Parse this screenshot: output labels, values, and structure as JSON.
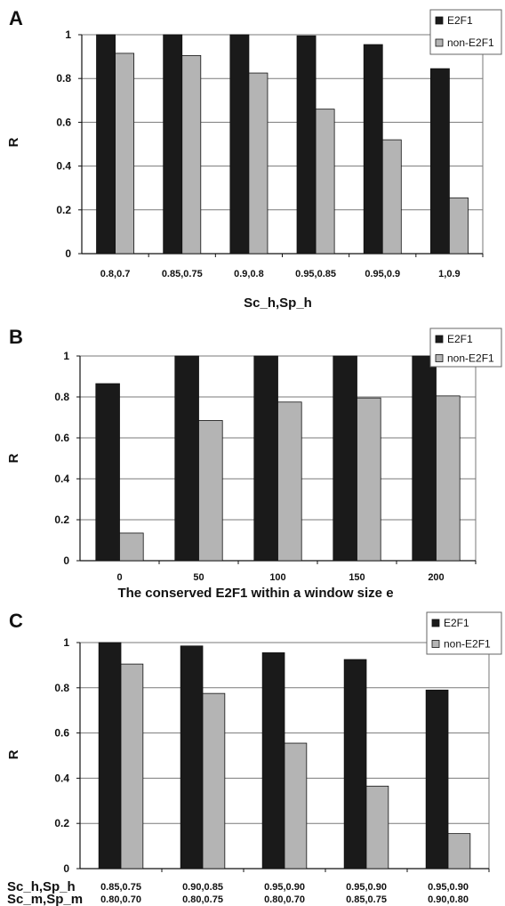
{
  "chart_data": [
    {
      "panel": "A",
      "type": "bar",
      "categories": [
        "0.8,0.7",
        "0.85,0.75",
        "0.9,0.8",
        "0.95,0.85",
        "0.95,0.9",
        "1,0.9"
      ],
      "series": [
        {
          "name": "E2F1",
          "values": [
            1.0,
            1.0,
            1.0,
            0.995,
            0.955,
            0.845
          ]
        },
        {
          "name": "non-E2F1",
          "values": [
            0.915,
            0.905,
            0.825,
            0.66,
            0.52,
            0.255
          ]
        }
      ],
      "ylabel": "R",
      "xlabel": "Sc_h,Sp_h",
      "ylim": [
        0,
        1
      ],
      "yticks": [
        "0",
        "0.2",
        "0.4",
        "0.6",
        "0.8",
        "1"
      ],
      "grid": true,
      "legend": "top-right"
    },
    {
      "panel": "B",
      "type": "bar",
      "categories": [
        "0",
        "50",
        "100",
        "150",
        "200"
      ],
      "series": [
        {
          "name": "E2F1",
          "values": [
            0.865,
            1.0,
            1.0,
            1.0,
            1.0
          ]
        },
        {
          "name": "non-E2F1",
          "values": [
            0.135,
            0.685,
            0.775,
            0.795,
            0.805
          ]
        }
      ],
      "ylabel": "R",
      "xlabel": "The conserved E2F1 within a window size e",
      "ylim": [
        0,
        1
      ],
      "yticks": [
        "0",
        "0.2",
        "0.4",
        "0.6",
        "0.8",
        "1"
      ],
      "grid": true,
      "legend": "top-right"
    },
    {
      "panel": "C",
      "type": "bar",
      "categories": [
        "0.85,0.75 / 0.80,0.70",
        "0.90,0.85 / 0.80,0.75",
        "0.95,0.90 / 0.80,0.70",
        "0.95,0.90 / 0.85,0.75",
        "0.95,0.90 / 0.90,0.80"
      ],
      "category_rows": [
        {
          "label": "Sc_h,Sp_h",
          "values": [
            "0.85,0.75",
            "0.90,0.85",
            "0.95,0.90",
            "0.95,0.90",
            "0.95,0.90"
          ]
        },
        {
          "label": "Sc_m,Sp_m",
          "values": [
            "0.80,0.70",
            "0.80,0.75",
            "0.80,0.70",
            "0.85,0.75",
            "0.90,0.80"
          ]
        }
      ],
      "series": [
        {
          "name": "E2F1",
          "values": [
            1.0,
            0.985,
            0.955,
            0.925,
            0.79
          ]
        },
        {
          "name": "non-E2F1",
          "values": [
            0.905,
            0.775,
            0.555,
            0.365,
            0.155
          ]
        }
      ],
      "ylabel": "R",
      "xlabel": "",
      "ylim": [
        0,
        1
      ],
      "yticks": [
        "0",
        "0.2",
        "0.4",
        "0.6",
        "0.8",
        "1"
      ],
      "grid": true,
      "legend": "top-right"
    }
  ],
  "colors": {
    "E2F1": "#1a1a1a",
    "non-E2F1": "#b4b4b4",
    "grid": "#7a7a7a",
    "frame": "#777777"
  }
}
